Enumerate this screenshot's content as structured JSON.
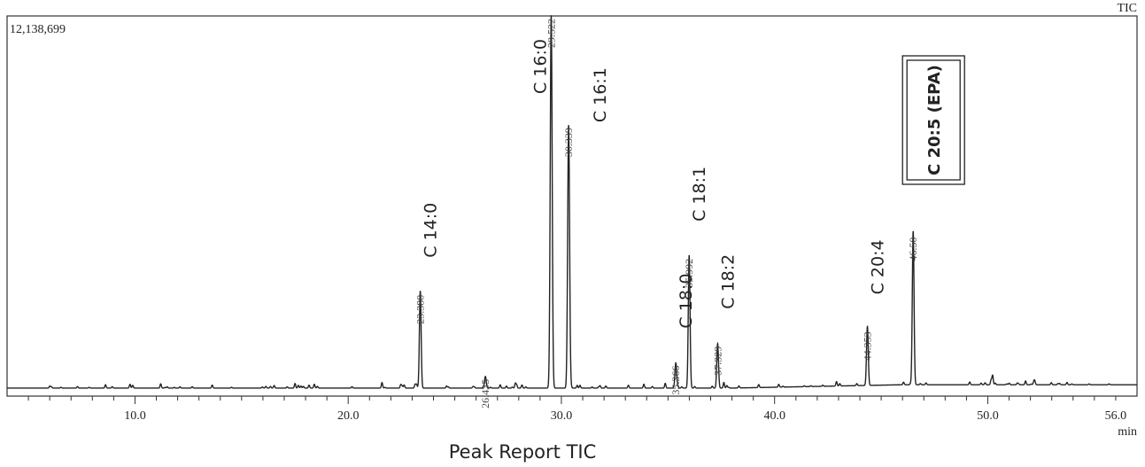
{
  "chart_data": {
    "type": "line",
    "detector_label": "TIC",
    "ymax_label": "12,138,699",
    "xlabel": "min",
    "caption": "Peak Report TIC",
    "xlim": [
      4.0,
      57.0
    ],
    "ylim": [
      0,
      12138699
    ],
    "x_ticks": [
      {
        "value": 10.0,
        "label": "10.0"
      },
      {
        "value": 20.0,
        "label": "20.0"
      },
      {
        "value": 30.0,
        "label": "30.0"
      },
      {
        "value": 40.0,
        "label": "40.0"
      },
      {
        "value": 50.0,
        "label": "50.0"
      },
      {
        "value": 56.0,
        "label": "56.0"
      }
    ],
    "peaks": [
      {
        "rt": 23.38,
        "rt_label": "23.380",
        "height": 3120000,
        "compound": "C 14:0"
      },
      {
        "rt": 26.435,
        "rt_label": "26.435",
        "height": 380000,
        "compound": ""
      },
      {
        "rt": 29.522,
        "rt_label": "29.522",
        "height": 12138699,
        "compound": "C 16:0"
      },
      {
        "rt": 30.339,
        "rt_label": "30.339",
        "height": 8560000,
        "compound": "C 16:1"
      },
      {
        "rt": 35.366,
        "rt_label": "35.366",
        "height": 820000,
        "compound": "C 18:0"
      },
      {
        "rt": 35.992,
        "rt_label": "35.992",
        "height": 4300000,
        "compound": "C 18:1"
      },
      {
        "rt": 37.329,
        "rt_label": "37.329",
        "height": 1450000,
        "compound": "C 18:2"
      },
      {
        "rt": 44.353,
        "rt_label": "44.353",
        "height": 1920000,
        "compound": "C 20:4"
      },
      {
        "rt": 46.5,
        "rt_label": "46.50",
        "height": 5000000,
        "compound": "C 20:5 (EPA)"
      }
    ],
    "grid": false,
    "legend": "none",
    "colors": {
      "trace": "#222222",
      "frame": "#333333",
      "background": "#ffffff"
    }
  }
}
